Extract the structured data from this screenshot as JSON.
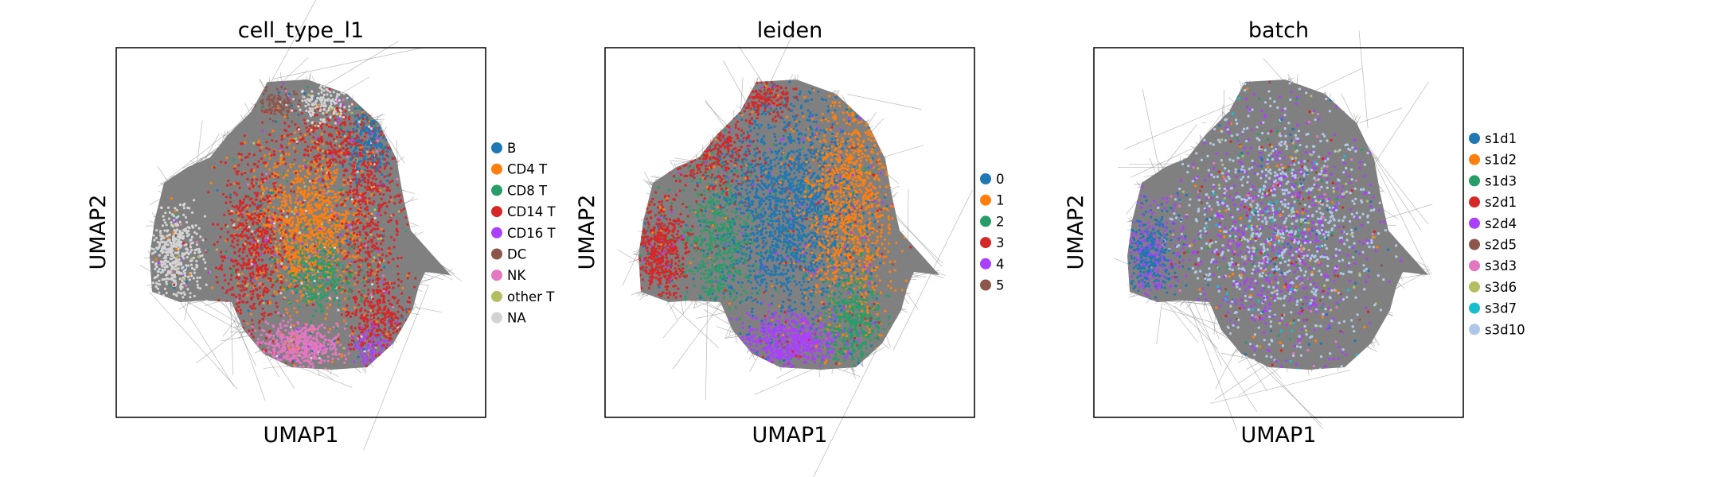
{
  "figure": {
    "background": "#ffffff",
    "frame_color": "#000000",
    "graph_edge_color": "#808080"
  },
  "chart_data": [
    {
      "type": "scatter",
      "title": "cell_type_l1",
      "xlabel": "UMAP1",
      "ylabel": "UMAP2",
      "ticks": "none",
      "grid": false,
      "legend_placement": "right",
      "legend": [
        {
          "label": "B",
          "color": "#1f77b4"
        },
        {
          "label": "CD4 T",
          "color": "#ff7f0e"
        },
        {
          "label": "CD8 T",
          "color": "#279e68"
        },
        {
          "label": "CD14 T",
          "color": "#d62728"
        },
        {
          "label": "CD16 T",
          "color": "#aa40fc"
        },
        {
          "label": "DC",
          "color": "#8c564b"
        },
        {
          "label": "NK",
          "color": "#e377c2"
        },
        {
          "label": "other T",
          "color": "#b5bd61"
        },
        {
          "label": "NA",
          "color": "#d3d3d3"
        }
      ]
    },
    {
      "type": "scatter",
      "title": "leiden",
      "xlabel": "UMAP1",
      "ylabel": "UMAP2",
      "ticks": "none",
      "grid": false,
      "legend_placement": "right",
      "legend": [
        {
          "label": "0",
          "color": "#1f77b4"
        },
        {
          "label": "1",
          "color": "#ff7f0e"
        },
        {
          "label": "2",
          "color": "#279e68"
        },
        {
          "label": "3",
          "color": "#d62728"
        },
        {
          "label": "4",
          "color": "#aa40fc"
        },
        {
          "label": "5",
          "color": "#8c564b"
        }
      ]
    },
    {
      "type": "scatter",
      "title": "batch",
      "xlabel": "UMAP1",
      "ylabel": "UMAP2",
      "ticks": "none",
      "grid": false,
      "legend_placement": "right",
      "legend": [
        {
          "label": "s1d1",
          "color": "#1f77b4"
        },
        {
          "label": "s1d2",
          "color": "#ff7f0e"
        },
        {
          "label": "s1d3",
          "color": "#279e68"
        },
        {
          "label": "s2d1",
          "color": "#d62728"
        },
        {
          "label": "s2d4",
          "color": "#aa40fc"
        },
        {
          "label": "s2d5",
          "color": "#8c564b"
        },
        {
          "label": "s3d3",
          "color": "#e377c2"
        },
        {
          "label": "s3d6",
          "color": "#b5bd61"
        },
        {
          "label": "s3d7",
          "color": "#17becf"
        },
        {
          "label": "s3d10",
          "color": "#aec7e8"
        }
      ]
    }
  ]
}
